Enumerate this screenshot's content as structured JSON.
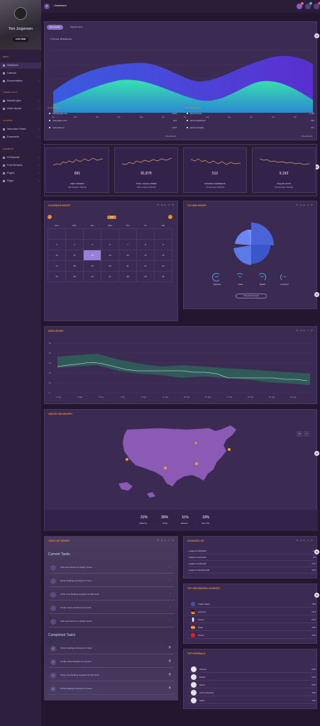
{
  "sidebar": {
    "user": "Tom Jorgensen",
    "lock_label": "LOCK NOW",
    "section_menu": "MENU",
    "section_themes": "THEME TOOLS",
    "section_systems": "SYSTEMS",
    "section_elements": "ELEMENTS",
    "items": [
      {
        "label": "Dashboard"
      },
      {
        "label": "Calendar"
      },
      {
        "label": "Documentation"
      },
      {
        "label": "Models/Lights"
      },
      {
        "label": "Admin layouts"
      },
      {
        "label": "Information Panels"
      },
      {
        "label": "Ecommerce"
      },
      {
        "label": "UI Elements"
      },
      {
        "label": "Form Elements"
      },
      {
        "label": "Plugins"
      },
      {
        "label": "Pages"
      }
    ]
  },
  "topbar": {
    "breadcrumb": "Dashboard",
    "badges": [
      "3",
      "6",
      "2"
    ]
  },
  "traffic": {
    "tab_active": "Best activity",
    "tab_2": "Popular items",
    "legend": [
      "Phones",
      "Notebooks"
    ],
    "x_labels": [
      "Jan",
      "Feb",
      "Mar",
      "Apr",
      "May",
      "Jun",
      "Jul",
      "Aug",
      "Sep",
      "Oct",
      "Nov",
      "Dec"
    ],
    "ref_title": "Top Referrals",
    "ref_rows": [
      {
        "name": "www.google.com",
        "value": "2,024"
      },
      {
        "name": "www.yahoo.com",
        "value": "561"
      },
      {
        "name": "www.stemi.ru",
        "value": "1,021"
      }
    ],
    "ref_link": "View Reports",
    "search_title": "Top Search Terms",
    "search_rows": [
      {
        "name": "admin theme",
        "value": "1,145"
      },
      {
        "name": "admin dashboard",
        "value": "557"
      },
      {
        "name": "admin template",
        "value": "371"
      }
    ],
    "search_link": "View Reports"
  },
  "stats": [
    {
      "value": "891",
      "label": "NEW ORDERS",
      "sub": "9% Increase YW/ACD"
    },
    {
      "value": "81,878",
      "label": "TOTAL SALES ORDER",
      "sub": "13% Increase YW/ACD"
    },
    {
      "value": "512",
      "label": "PENDING SHIPMENTS",
      "sub": "7% decrease YW/ACD"
    },
    {
      "value": "9,193",
      "label": "UNIQUE VISITS",
      "sub": "7% decrease YW/ACD"
    }
  ],
  "calendar": {
    "title": "CALENDAR WIDGET",
    "month": "2015",
    "days": [
      "Sun",
      "Mon",
      "Tue",
      "Wed",
      "Thu",
      "Fri",
      "Sat"
    ],
    "weeks": [
      [
        "",
        "",
        "",
        "",
        "",
        "",
        ""
      ],
      [
        "3",
        "4",
        "5",
        "6",
        "7",
        "8",
        "9"
      ],
      [
        "10",
        "11",
        "12",
        "13",
        "14",
        "15",
        "16"
      ],
      [
        "17",
        "18",
        "19",
        "20",
        "21",
        "22",
        "23"
      ],
      [
        "24",
        "25",
        "26",
        "27",
        "28",
        "29",
        "30"
      ]
    ]
  },
  "column": {
    "title": "COLUMN GRAPH",
    "items": [
      {
        "pct": "+40%",
        "label": "Welcome"
      },
      {
        "pct": "+9%",
        "label": "Safari"
      },
      {
        "pct": "+23%",
        "label": "SEMrhi"
      },
      {
        "pct": "+14%",
        "label": "Facebook"
      }
    ],
    "button": "Add social network"
  },
  "area": {
    "title": "AREA GRAPH",
    "x_labels": [
      "1. Sep",
      "3. Sep",
      "5. Sep",
      "7. Sep",
      "9. Sep",
      "11. Sep",
      "13. Sep",
      "15. Sep",
      "17. Sep",
      "19. Sep",
      "21. Sep",
      "23. Sep"
    ],
    "y_labels": [
      "50",
      "40",
      "30",
      "20",
      "10",
      "0"
    ]
  },
  "geo": {
    "title": "VISITOR GEOGRAPHY",
    "stats": [
      {
        "pct": "31%",
        "label": "California"
      },
      {
        "pct": "39%",
        "label": "Texas"
      },
      {
        "pct": "11%",
        "label": "Missouri"
      },
      {
        "pct": "19%",
        "label": "New York"
      }
    ]
  },
  "todo": {
    "title": "TODO LIST WIDGET",
    "current": "Current Tasks",
    "completed": "Completed Tasks",
    "tasks": [
      "Add new sensors to design board",
      "Finish building prototype for Sony",
      "Order new building supplies for Microsoft",
      "Create documentation for launch",
      "Add new sensors to design board"
    ],
    "done": [
      "Finish building prototype for Sony",
      "Create documentation for launch",
      "Order new building supplies for Microsoft",
      "Finish building prototype for Sony"
    ]
  },
  "crawler": {
    "title": "CRAWLER LIST",
    "rows": [
      {
        "name": "pages.com/blog/35",
        "value": "1%"
      },
      {
        "name": "pages.com/popular",
        "value": "1%"
      },
      {
        "name": "pages.com/about/3",
        "value": "17%"
      },
      {
        "name": "pages.com/features/93",
        "value": "21%"
      }
    ]
  },
  "countries": {
    "title": "TOP GEOGRAPHIC SOURCES",
    "rows": [
      {
        "name": "United States",
        "value": "78%",
        "color": "#3a5aa8"
      },
      {
        "name": "Germany",
        "value": "21%",
        "color": "#d23"
      },
      {
        "name": "France",
        "value": "21%",
        "color": "#2a47a8"
      },
      {
        "name": "Spain",
        "value": "19%",
        "color": "#e9b41c"
      },
      {
        "name": "Turkey",
        "value": "19%",
        "color": "#d22"
      }
    ]
  },
  "browsers": {
    "title": "TOP INTERNALS",
    "rows": [
      {
        "name": "Chrome",
        "value": "29%"
      },
      {
        "name": "Firefox",
        "value": "21%"
      },
      {
        "name": "Opera",
        "value": "27%"
      },
      {
        "name": "Internet Explorer",
        "value": "19%"
      },
      {
        "name": "Safari",
        "value": "19%"
      }
    ]
  }
}
